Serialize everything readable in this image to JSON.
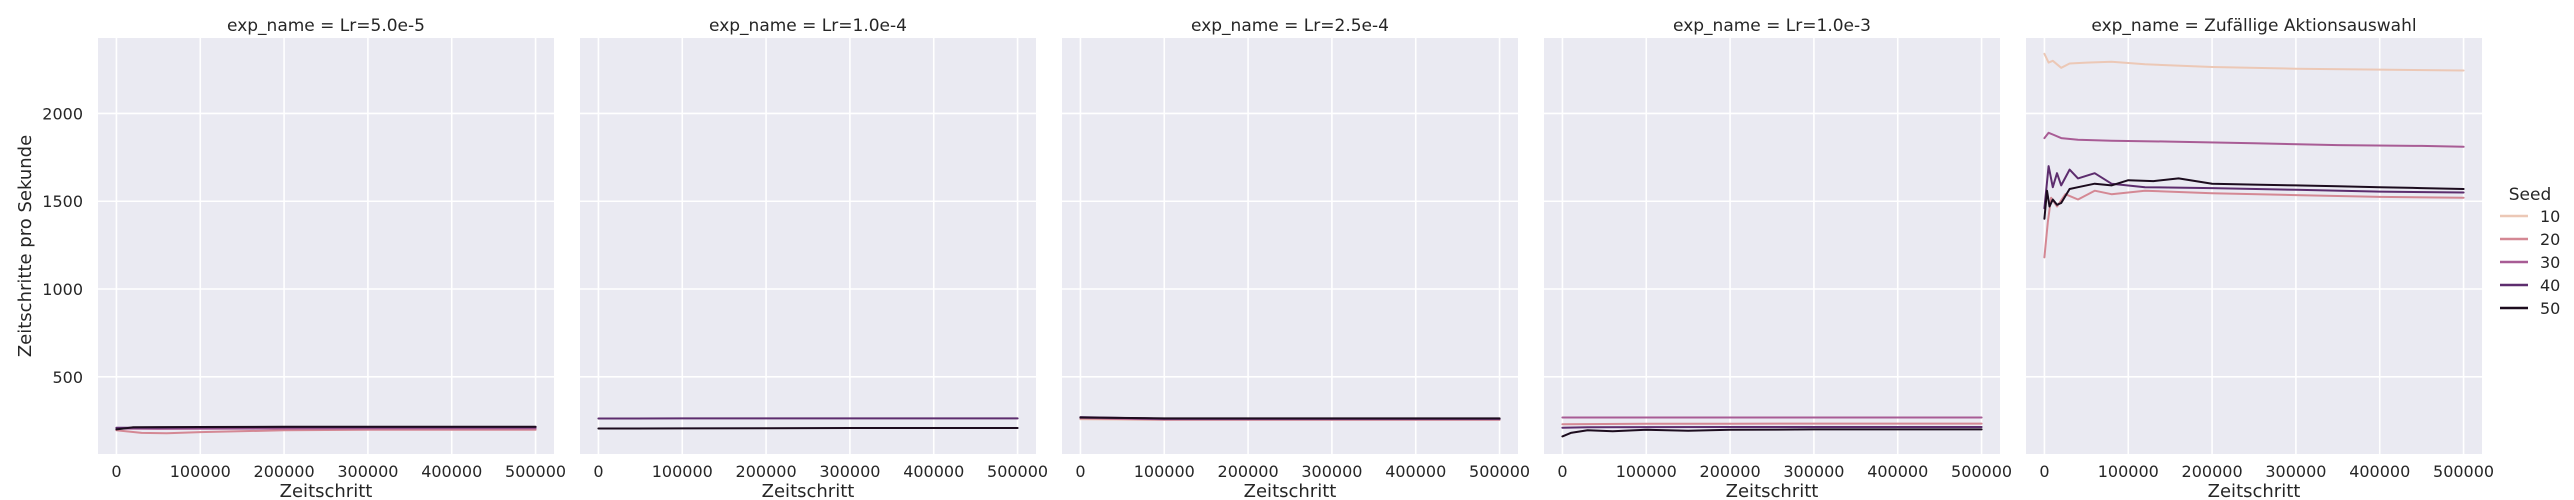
{
  "chart_data": {
    "type": "line",
    "ylabel": "Zeitschritte pro Sekunde",
    "legend": {
      "title": "Seed",
      "placement": "right",
      "entries": [
        {
          "label": "10",
          "color": "#ecc8b6"
        },
        {
          "label": "20",
          "color": "#d48894"
        },
        {
          "label": "30",
          "color": "#a85c95"
        },
        {
          "label": "40",
          "color": "#5d2d6e"
        },
        {
          "label": "50",
          "color": "#1c0c1e"
        }
      ]
    },
    "shared_y": {
      "ylim": [
        60,
        2430
      ],
      "yticks": [
        500,
        1000,
        1500,
        2000
      ],
      "ytick_labels": [
        "500",
        "1000",
        "1500",
        "2000"
      ]
    },
    "panels": [
      {
        "title": "exp_name = Lr=5.0e-5",
        "xlabel": "Zeitschritt",
        "xlim": [
          -22000,
          522000
        ],
        "xticks": [
          0,
          100000,
          200000,
          300000,
          400000,
          500000
        ],
        "xtick_labels": [
          "0",
          "100000",
          "200000",
          "300000",
          "400000",
          "500000"
        ],
        "grid": true,
        "series": [
          {
            "seed": "20",
            "points": [
              [
                0,
                195
              ],
              [
                30000,
                180
              ],
              [
                60000,
                178
              ],
              [
                100000,
                185
              ],
              [
                200000,
                195
              ],
              [
                300000,
                198
              ],
              [
                400000,
                198
              ],
              [
                500000,
                198
              ]
            ]
          },
          {
            "seed": "30",
            "points": [
              [
                0,
                205
              ],
              [
                50000,
                203
              ],
              [
                100000,
                204
              ],
              [
                200000,
                205
              ],
              [
                300000,
                206
              ],
              [
                400000,
                206
              ],
              [
                500000,
                206
              ]
            ]
          },
          {
            "seed": "40",
            "points": [
              [
                0,
                210
              ],
              [
                50000,
                210
              ],
              [
                100000,
                211
              ],
              [
                200000,
                212
              ],
              [
                300000,
                212
              ],
              [
                400000,
                212
              ],
              [
                500000,
                212
              ]
            ]
          },
          {
            "seed": "50",
            "points": [
              [
                0,
                200
              ],
              [
                20000,
                212
              ],
              [
                50000,
                213
              ],
              [
                100000,
                214
              ],
              [
                200000,
                215
              ],
              [
                300000,
                215
              ],
              [
                400000,
                215
              ],
              [
                500000,
                215
              ]
            ]
          }
        ]
      },
      {
        "title": "exp_name = Lr=1.0e-4",
        "xlabel": "Zeitschritt",
        "xlim": [
          -22000,
          522000
        ],
        "xticks": [
          0,
          100000,
          200000,
          300000,
          400000,
          500000
        ],
        "xtick_labels": [
          "0",
          "100000",
          "200000",
          "300000",
          "400000",
          "500000"
        ],
        "grid": true,
        "series": [
          {
            "seed": "40",
            "points": [
              [
                0,
                262
              ],
              [
                100000,
                263
              ],
              [
                200000,
                263
              ],
              [
                300000,
                263
              ],
              [
                400000,
                263
              ],
              [
                500000,
                263
              ]
            ]
          },
          {
            "seed": "50",
            "points": [
              [
                0,
                205
              ],
              [
                100000,
                206
              ],
              [
                200000,
                207
              ],
              [
                300000,
                208
              ],
              [
                400000,
                208
              ],
              [
                500000,
                208
              ]
            ]
          }
        ]
      },
      {
        "title": "exp_name = Lr=2.5e-4",
        "xlabel": "Zeitschritt",
        "xlim": [
          -22000,
          522000
        ],
        "xticks": [
          0,
          100000,
          200000,
          300000,
          400000,
          500000
        ],
        "xtick_labels": [
          "0",
          "100000",
          "200000",
          "300000",
          "400000",
          "500000"
        ],
        "grid": true,
        "series": [
          {
            "seed": "10",
            "points": [
              [
                0,
                258
              ],
              [
                100000,
                254
              ],
              [
                200000,
                254
              ],
              [
                300000,
                254
              ],
              [
                400000,
                254
              ],
              [
                500000,
                254
              ]
            ]
          },
          {
            "seed": "20",
            "points": [
              [
                0,
                262
              ],
              [
                100000,
                256
              ],
              [
                200000,
                256
              ],
              [
                300000,
                256
              ],
              [
                400000,
                256
              ],
              [
                500000,
                256
              ]
            ]
          },
          {
            "seed": "30",
            "points": [
              [
                0,
                266
              ],
              [
                100000,
                258
              ],
              [
                200000,
                258
              ],
              [
                300000,
                258
              ],
              [
                400000,
                258
              ],
              [
                500000,
                258
              ]
            ]
          },
          {
            "seed": "40",
            "points": [
              [
                0,
                270
              ],
              [
                100000,
                261
              ],
              [
                200000,
                261
              ],
              [
                300000,
                261
              ],
              [
                400000,
                261
              ],
              [
                500000,
                261
              ]
            ]
          },
          {
            "seed": "50",
            "points": [
              [
                0,
                268
              ],
              [
                100000,
                263
              ],
              [
                200000,
                263
              ],
              [
                300000,
                263
              ],
              [
                400000,
                263
              ],
              [
                500000,
                263
              ]
            ]
          }
        ]
      },
      {
        "title": "exp_name = Lr=1.0e-3",
        "xlabel": "Zeitschritt",
        "xlim": [
          -22000,
          522000
        ],
        "xticks": [
          0,
          100000,
          200000,
          300000,
          400000,
          500000
        ],
        "xtick_labels": [
          "0",
          "100000",
          "200000",
          "300000",
          "400000",
          "500000"
        ],
        "grid": true,
        "series": [
          {
            "seed": "20",
            "points": [
              [
                0,
                230
              ],
              [
                100000,
                232
              ],
              [
                200000,
                232
              ],
              [
                300000,
                233
              ],
              [
                400000,
                233
              ],
              [
                500000,
                233
              ]
            ]
          },
          {
            "seed": "30",
            "points": [
              [
                0,
                268
              ],
              [
                100000,
                268
              ],
              [
                200000,
                268
              ],
              [
                300000,
                268
              ],
              [
                400000,
                268
              ],
              [
                500000,
                268
              ]
            ]
          },
          {
            "seed": "40",
            "points": [
              [
                0,
                210
              ],
              [
                30000,
                212
              ],
              [
                100000,
                213
              ],
              [
                200000,
                214
              ],
              [
                300000,
                214
              ],
              [
                400000,
                214
              ],
              [
                500000,
                214
              ]
            ]
          },
          {
            "seed": "50",
            "points": [
              [
                0,
                160
              ],
              [
                10000,
                180
              ],
              [
                30000,
                195
              ],
              [
                60000,
                190
              ],
              [
                100000,
                198
              ],
              [
                150000,
                192
              ],
              [
                200000,
                198
              ],
              [
                300000,
                200
              ],
              [
                400000,
                200
              ],
              [
                500000,
                200
              ]
            ]
          }
        ]
      },
      {
        "title": "exp_name = Zufällige Aktionsauswahl",
        "xlabel": "Zeitschritt",
        "xlim": [
          -22000,
          522000
        ],
        "xticks": [
          0,
          100000,
          200000,
          300000,
          400000,
          500000
        ],
        "xtick_labels": [
          "0",
          "100000",
          "200000",
          "300000",
          "400000",
          "500000"
        ],
        "grid": true,
        "series": [
          {
            "seed": "10",
            "points": [
              [
                0,
                2340
              ],
              [
                5000,
                2290
              ],
              [
                10000,
                2300
              ],
              [
                20000,
                2260
              ],
              [
                30000,
                2285
              ],
              [
                50000,
                2290
              ],
              [
                80000,
                2295
              ],
              [
                120000,
                2280
              ],
              [
                200000,
                2265
              ],
              [
                300000,
                2255
              ],
              [
                400000,
                2250
              ],
              [
                500000,
                2245
              ]
            ]
          },
          {
            "seed": "20",
            "points": [
              [
                0,
                1180
              ],
              [
                4000,
                1380
              ],
              [
                8000,
                1520
              ],
              [
                15000,
                1470
              ],
              [
                25000,
                1540
              ],
              [
                40000,
                1510
              ],
              [
                60000,
                1560
              ],
              [
                80000,
                1540
              ],
              [
                120000,
                1560
              ],
              [
                200000,
                1545
              ],
              [
                300000,
                1535
              ],
              [
                400000,
                1525
              ],
              [
                500000,
                1520
              ]
            ]
          },
          {
            "seed": "30",
            "points": [
              [
                0,
                1860
              ],
              [
                5000,
                1890
              ],
              [
                10000,
                1880
              ],
              [
                20000,
                1860
              ],
              [
                40000,
                1850
              ],
              [
                80000,
                1845
              ],
              [
                150000,
                1840
              ],
              [
                250000,
                1830
              ],
              [
                350000,
                1820
              ],
              [
                450000,
                1815
              ],
              [
                500000,
                1810
              ]
            ]
          },
          {
            "seed": "40",
            "points": [
              [
                0,
                1460
              ],
              [
                5000,
                1700
              ],
              [
                10000,
                1580
              ],
              [
                15000,
                1660
              ],
              [
                20000,
                1590
              ],
              [
                30000,
                1680
              ],
              [
                40000,
                1630
              ],
              [
                60000,
                1660
              ],
              [
                80000,
                1600
              ],
              [
                120000,
                1580
              ],
              [
                200000,
                1575
              ],
              [
                300000,
                1565
              ],
              [
                400000,
                1555
              ],
              [
                500000,
                1550
              ]
            ]
          },
          {
            "seed": "50",
            "points": [
              [
                0,
                1400
              ],
              [
                3000,
                1560
              ],
              [
                6000,
                1470
              ],
              [
                10000,
                1510
              ],
              [
                15000,
                1480
              ],
              [
                20000,
                1490
              ],
              [
                30000,
                1570
              ],
              [
                40000,
                1580
              ],
              [
                60000,
                1600
              ],
              [
                80000,
                1590
              ],
              [
                100000,
                1620
              ],
              [
                130000,
                1615
              ],
              [
                160000,
                1630
              ],
              [
                200000,
                1600
              ],
              [
                250000,
                1595
              ],
              [
                300000,
                1590
              ],
              [
                350000,
                1585
              ],
              [
                400000,
                1580
              ],
              [
                450000,
                1575
              ],
              [
                500000,
                1570
              ]
            ]
          }
        ]
      }
    ]
  }
}
